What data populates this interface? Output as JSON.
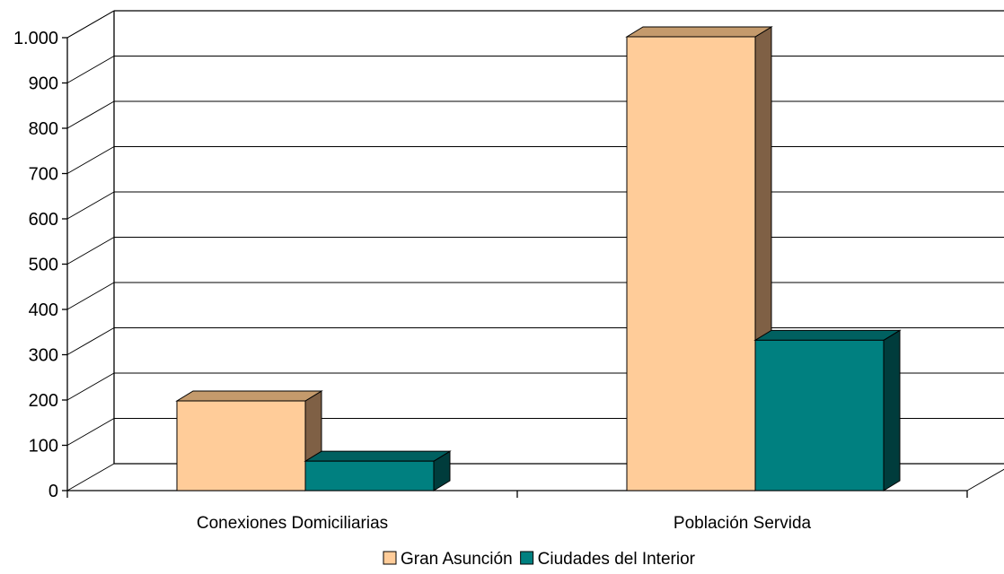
{
  "chart_data": {
    "type": "bar",
    "categories": [
      "Conexiones Domiciliarias",
      "Población Servida"
    ],
    "series": [
      {
        "name": "Gran Asunción",
        "values": [
          198,
          1002
        ],
        "color": "#FFCC99",
        "side_color": "#7F6045",
        "top_color": "#C49A6C"
      },
      {
        "name": "Ciudades del Interior",
        "values": [
          65,
          332
        ],
        "color": "#008080",
        "side_color": "#003C3C",
        "top_color": "#006060"
      }
    ],
    "ylim": [
      0,
      1000
    ],
    "yticks": [
      0,
      100,
      200,
      300,
      400,
      500,
      600,
      700,
      800,
      900,
      1000
    ],
    "ytick_labels": [
      "0",
      "100",
      "200",
      "300",
      "400",
      "500",
      "600",
      "700",
      "800",
      "900",
      "1.000"
    ],
    "grid": true,
    "legend_position": "bottom-center",
    "projection": "3d-oblique"
  }
}
